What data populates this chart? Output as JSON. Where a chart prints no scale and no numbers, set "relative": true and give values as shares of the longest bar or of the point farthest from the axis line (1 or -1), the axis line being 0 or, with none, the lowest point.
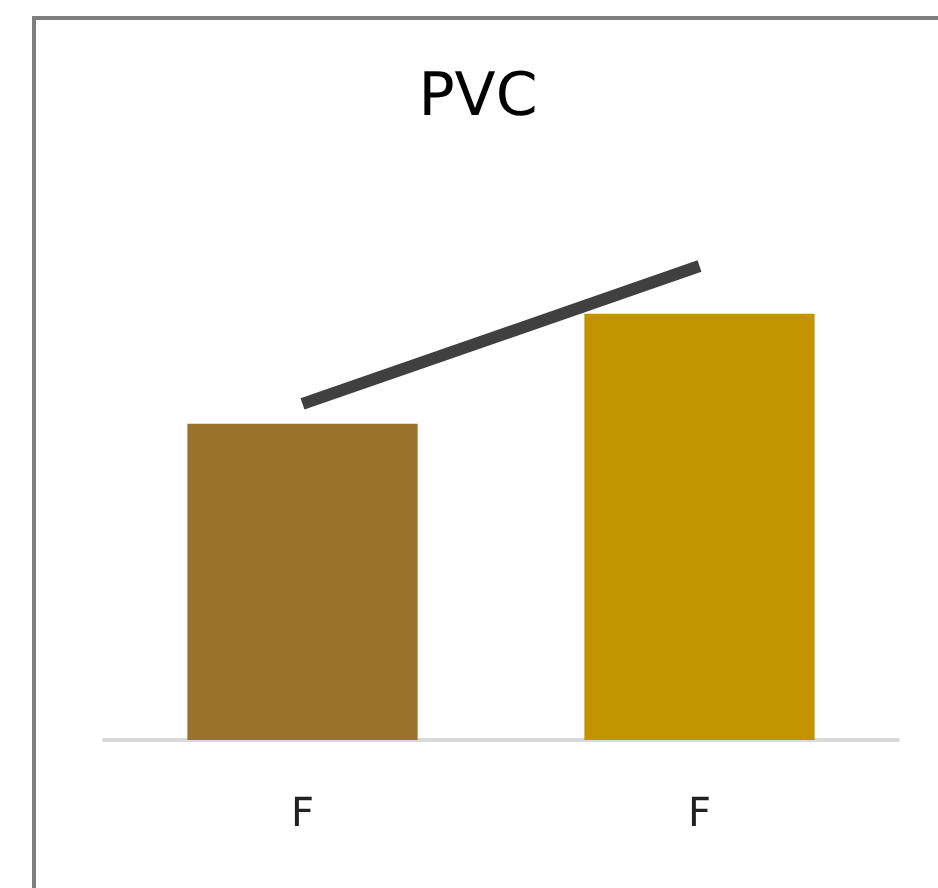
{
  "chart_data": {
    "type": "bar",
    "title": "PVC",
    "categories": [
      "F",
      "F"
    ],
    "relative": true,
    "series": [
      {
        "values": [
          0.667,
          0.899
        ],
        "colors": [
          "#9a722b",
          "#c29400"
        ]
      },
      {
        "type": "line",
        "values": [
          0.709,
          1
        ],
        "color": "#404040",
        "marker": "none"
      }
    ]
  }
}
